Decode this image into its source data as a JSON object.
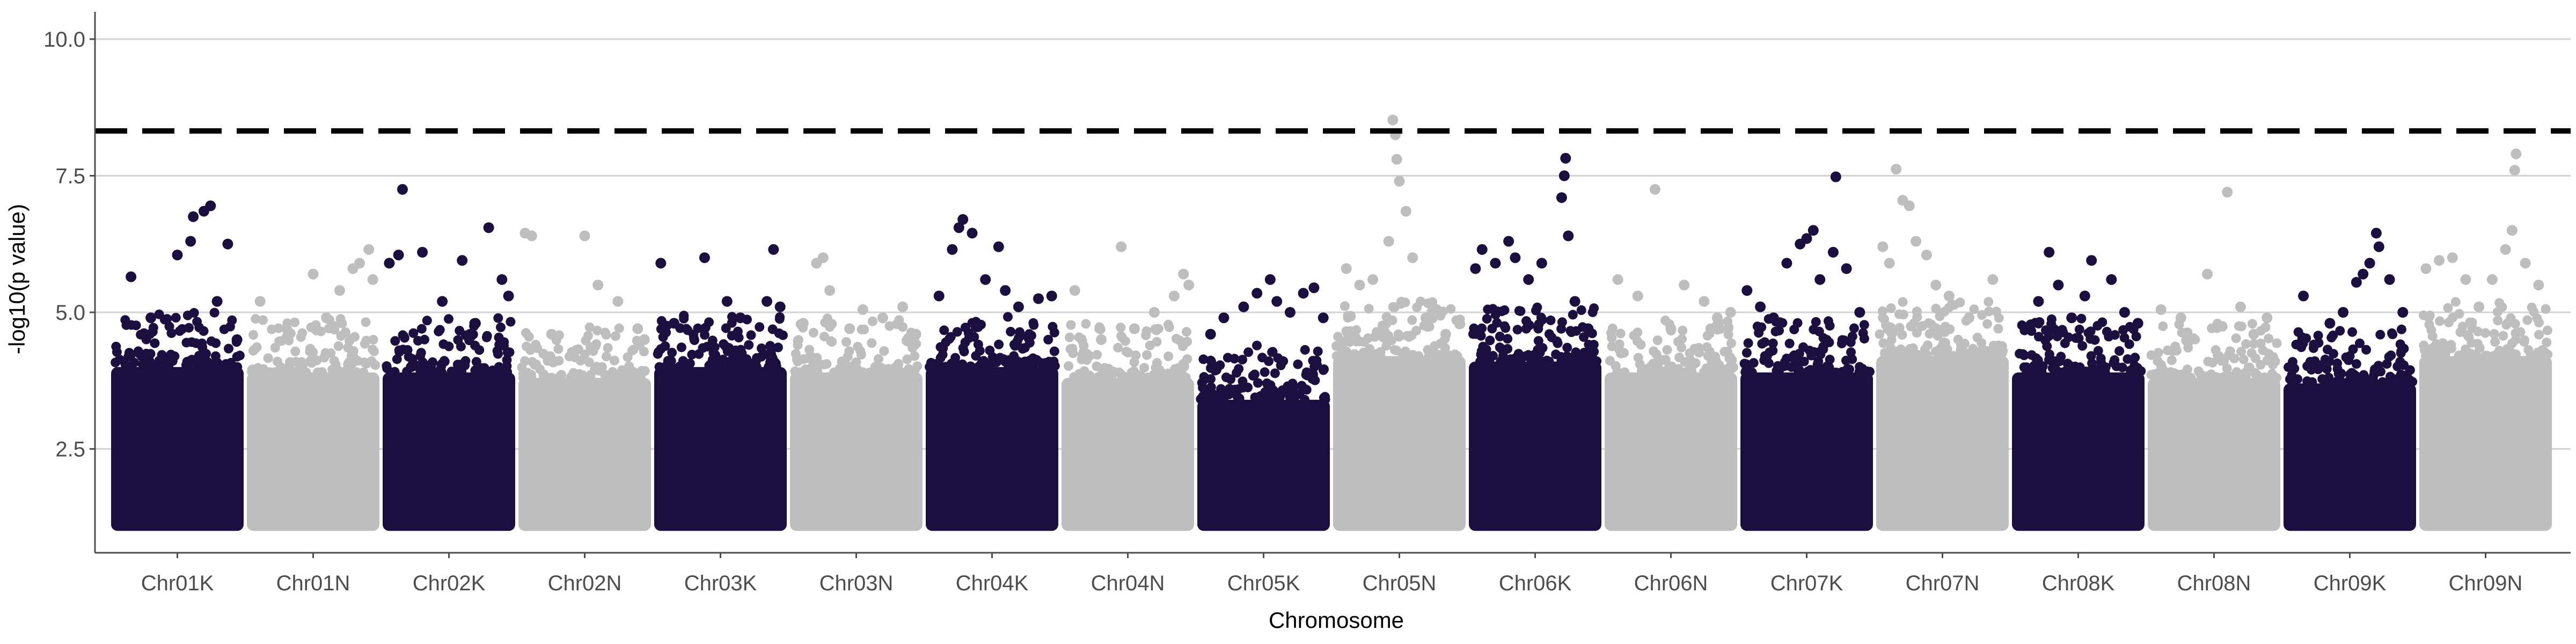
{
  "chart_data": {
    "type": "scatter",
    "subtype": "manhattan",
    "title": "",
    "xlabel": "Chromosome",
    "ylabel": "-log10(p value)",
    "ylim": [
      0.6,
      10.5
    ],
    "y_ticks": [
      2.5,
      5.0,
      7.5,
      10.0
    ],
    "y_tick_labels": [
      "2.5",
      "5.0",
      "7.5",
      "10.0"
    ],
    "grid": "horizontal major",
    "legend": "none",
    "point_floor": 1.0,
    "threshold": {
      "value": 8.32,
      "style": "dashed",
      "color": "#000000"
    },
    "colors": {
      "odd": "#1b0f3f",
      "even": "#bebebe",
      "grid": "#d3d3d3",
      "axis": "#4d4d4d"
    },
    "categories": [
      "Chr01K",
      "Chr01N",
      "Chr02K",
      "Chr02N",
      "Chr03K",
      "Chr03N",
      "Chr04K",
      "Chr04N",
      "Chr05K",
      "Chr05N",
      "Chr06K",
      "Chr06N",
      "Chr07K",
      "Chr07N",
      "Chr08K",
      "Chr08N",
      "Chr09K",
      "Chr09N"
    ],
    "series": [
      {
        "name": "Chr01K",
        "dense_top": 4.0,
        "highlights": [
          [
            0.15,
            5.65
          ],
          [
            0.3,
            4.9
          ],
          [
            0.5,
            6.05
          ],
          [
            0.6,
            6.3
          ],
          [
            0.62,
            6.75
          ],
          [
            0.7,
            6.85
          ],
          [
            0.75,
            6.95
          ],
          [
            0.8,
            5.2
          ],
          [
            0.88,
            6.25
          ],
          [
            0.95,
            4.5
          ]
        ]
      },
      {
        "name": "Chr01N",
        "dense_top": 3.9,
        "highlights": [
          [
            0.1,
            5.2
          ],
          [
            0.3,
            4.7
          ],
          [
            0.5,
            5.7
          ],
          [
            0.6,
            4.9
          ],
          [
            0.7,
            5.4
          ],
          [
            0.8,
            5.8
          ],
          [
            0.85,
            5.9
          ],
          [
            0.92,
            6.15
          ],
          [
            0.95,
            5.6
          ]
        ]
      },
      {
        "name": "Chr02K",
        "dense_top": 3.9,
        "highlights": [
          [
            0.05,
            5.9
          ],
          [
            0.12,
            6.05
          ],
          [
            0.15,
            7.25
          ],
          [
            0.3,
            6.1
          ],
          [
            0.45,
            5.2
          ],
          [
            0.6,
            5.95
          ],
          [
            0.7,
            4.8
          ],
          [
            0.8,
            6.55
          ],
          [
            0.9,
            5.6
          ],
          [
            0.95,
            5.3
          ]
        ]
      },
      {
        "name": "Chr02N",
        "dense_top": 3.8,
        "highlights": [
          [
            0.05,
            6.45
          ],
          [
            0.1,
            6.4
          ],
          [
            0.25,
            4.6
          ],
          [
            0.5,
            6.4
          ],
          [
            0.6,
            5.5
          ],
          [
            0.75,
            5.2
          ],
          [
            0.9,
            4.7
          ],
          [
            0.95,
            4.5
          ]
        ]
      },
      {
        "name": "Chr03K",
        "dense_top": 4.0,
        "highlights": [
          [
            0.05,
            5.9
          ],
          [
            0.15,
            4.8
          ],
          [
            0.38,
            6.0
          ],
          [
            0.55,
            5.2
          ],
          [
            0.65,
            4.9
          ],
          [
            0.85,
            5.2
          ],
          [
            0.9,
            6.15
          ],
          [
            0.95,
            5.1
          ]
        ]
      },
      {
        "name": "Chr03N",
        "dense_top": 3.9,
        "highlights": [
          [
            0.1,
            4.8
          ],
          [
            0.2,
            5.9
          ],
          [
            0.25,
            6.0
          ],
          [
            0.3,
            5.4
          ],
          [
            0.45,
            4.7
          ],
          [
            0.55,
            5.05
          ],
          [
            0.7,
            4.9
          ],
          [
            0.85,
            5.1
          ],
          [
            0.95,
            4.6
          ]
        ]
      },
      {
        "name": "Chr04K",
        "dense_top": 4.0,
        "highlights": [
          [
            0.1,
            5.3
          ],
          [
            0.2,
            6.15
          ],
          [
            0.25,
            6.55
          ],
          [
            0.28,
            6.7
          ],
          [
            0.35,
            6.45
          ],
          [
            0.45,
            5.6
          ],
          [
            0.55,
            6.2
          ],
          [
            0.6,
            5.4
          ],
          [
            0.7,
            5.1
          ],
          [
            0.85,
            5.25
          ],
          [
            0.95,
            5.3
          ]
        ]
      },
      {
        "name": "Chr04N",
        "dense_top": 3.8,
        "highlights": [
          [
            0.1,
            5.4
          ],
          [
            0.3,
            4.5
          ],
          [
            0.45,
            6.2
          ],
          [
            0.55,
            4.7
          ],
          [
            0.7,
            5.0
          ],
          [
            0.85,
            5.3
          ],
          [
            0.92,
            5.7
          ],
          [
            0.96,
            5.5
          ]
        ]
      },
      {
        "name": "Chr05K",
        "dense_top": 3.4,
        "highlights": [
          [
            0.1,
            4.6
          ],
          [
            0.2,
            4.9
          ],
          [
            0.35,
            5.1
          ],
          [
            0.45,
            5.35
          ],
          [
            0.55,
            5.6
          ],
          [
            0.6,
            5.2
          ],
          [
            0.7,
            5.0
          ],
          [
            0.8,
            5.35
          ],
          [
            0.88,
            5.45
          ],
          [
            0.95,
            4.9
          ]
        ]
      },
      {
        "name": "Chr05N",
        "dense_top": 4.2,
        "highlights": [
          [
            0.1,
            5.8
          ],
          [
            0.2,
            5.5
          ],
          [
            0.3,
            5.6
          ],
          [
            0.42,
            6.3
          ],
          [
            0.45,
            8.52
          ],
          [
            0.47,
            8.25
          ],
          [
            0.48,
            7.8
          ],
          [
            0.5,
            7.4
          ],
          [
            0.55,
            6.85
          ],
          [
            0.6,
            6.0
          ],
          [
            0.7,
            4.9
          ],
          [
            0.85,
            4.6
          ]
        ]
      },
      {
        "name": "Chr06K",
        "dense_top": 4.1,
        "highlights": [
          [
            0.05,
            5.8
          ],
          [
            0.1,
            6.15
          ],
          [
            0.2,
            5.9
          ],
          [
            0.3,
            6.3
          ],
          [
            0.35,
            6.0
          ],
          [
            0.45,
            5.6
          ],
          [
            0.55,
            5.9
          ],
          [
            0.7,
            7.1
          ],
          [
            0.72,
            7.5
          ],
          [
            0.73,
            7.82
          ],
          [
            0.75,
            6.4
          ],
          [
            0.8,
            5.2
          ],
          [
            0.9,
            4.7
          ]
        ]
      },
      {
        "name": "Chr06N",
        "dense_top": 3.9,
        "highlights": [
          [
            0.1,
            5.6
          ],
          [
            0.25,
            5.3
          ],
          [
            0.38,
            7.25
          ],
          [
            0.5,
            4.7
          ],
          [
            0.6,
            5.5
          ],
          [
            0.75,
            5.2
          ],
          [
            0.85,
            4.9
          ],
          [
            0.95,
            5.0
          ]
        ]
      },
      {
        "name": "Chr07K",
        "dense_top": 3.9,
        "highlights": [
          [
            0.05,
            5.4
          ],
          [
            0.15,
            5.1
          ],
          [
            0.25,
            4.9
          ],
          [
            0.35,
            5.9
          ],
          [
            0.45,
            6.25
          ],
          [
            0.5,
            6.35
          ],
          [
            0.55,
            6.5
          ],
          [
            0.6,
            5.6
          ],
          [
            0.7,
            6.1
          ],
          [
            0.72,
            7.48
          ],
          [
            0.8,
            5.8
          ],
          [
            0.9,
            5.0
          ]
        ]
      },
      {
        "name": "Chr07N",
        "dense_top": 4.2,
        "highlights": [
          [
            0.05,
            6.2
          ],
          [
            0.1,
            5.9
          ],
          [
            0.15,
            7.62
          ],
          [
            0.2,
            7.05
          ],
          [
            0.25,
            6.95
          ],
          [
            0.3,
            6.3
          ],
          [
            0.38,
            6.05
          ],
          [
            0.45,
            5.5
          ],
          [
            0.55,
            5.3
          ],
          [
            0.7,
            4.9
          ],
          [
            0.88,
            5.6
          ]
        ]
      },
      {
        "name": "Chr08K",
        "dense_top": 3.9,
        "highlights": [
          [
            0.1,
            4.7
          ],
          [
            0.2,
            5.2
          ],
          [
            0.28,
            6.1
          ],
          [
            0.35,
            5.5
          ],
          [
            0.45,
            4.9
          ],
          [
            0.55,
            5.3
          ],
          [
            0.6,
            5.95
          ],
          [
            0.75,
            5.6
          ],
          [
            0.85,
            5.0
          ],
          [
            0.95,
            4.8
          ]
        ]
      },
      {
        "name": "Chr08N",
        "dense_top": 3.8,
        "highlights": [
          [
            0.1,
            5.05
          ],
          [
            0.25,
            4.9
          ],
          [
            0.45,
            5.7
          ],
          [
            0.6,
            7.2
          ],
          [
            0.7,
            5.1
          ],
          [
            0.8,
            4.6
          ],
          [
            0.9,
            4.9
          ]
        ]
      },
      {
        "name": "Chr09K",
        "dense_top": 3.7,
        "highlights": [
          [
            0.15,
            5.3
          ],
          [
            0.35,
            4.8
          ],
          [
            0.45,
            5.0
          ],
          [
            0.55,
            5.55
          ],
          [
            0.6,
            5.7
          ],
          [
            0.65,
            5.9
          ],
          [
            0.7,
            6.45
          ],
          [
            0.72,
            6.2
          ],
          [
            0.8,
            5.6
          ],
          [
            0.9,
            5.0
          ]
        ]
      },
      {
        "name": "Chr09N",
        "dense_top": 4.2,
        "highlights": [
          [
            0.05,
            5.8
          ],
          [
            0.15,
            5.95
          ],
          [
            0.25,
            6.0
          ],
          [
            0.35,
            5.6
          ],
          [
            0.45,
            5.1
          ],
          [
            0.55,
            5.6
          ],
          [
            0.65,
            6.15
          ],
          [
            0.7,
            6.5
          ],
          [
            0.72,
            7.6
          ],
          [
            0.73,
            7.9
          ],
          [
            0.8,
            5.9
          ],
          [
            0.9,
            5.5
          ]
        ]
      }
    ]
  }
}
